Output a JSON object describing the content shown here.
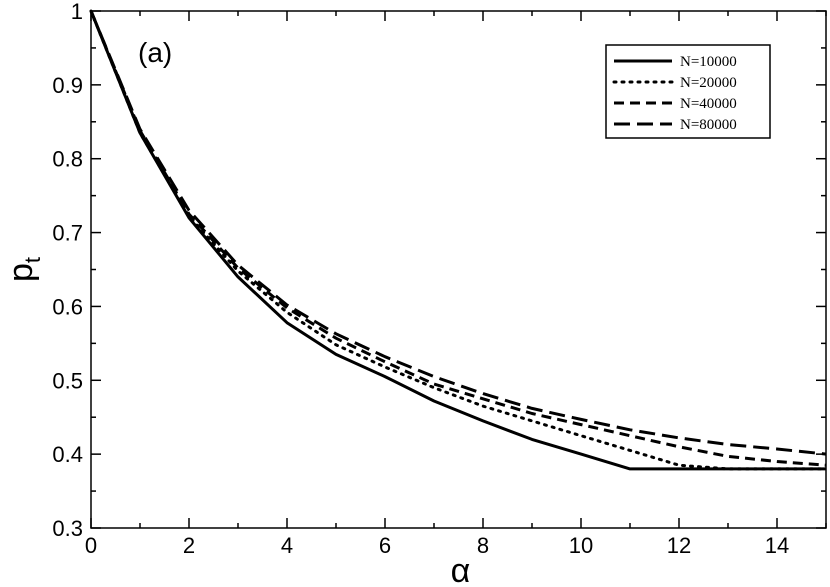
{
  "chart_data": {
    "type": "line",
    "title": "",
    "panel_label": "(a)",
    "xlabel": "α",
    "ylabel": "p",
    "ylabel_subscript": "t",
    "xlim": [
      0,
      15
    ],
    "ylim": [
      0.3,
      1.0
    ],
    "xticks": [
      0,
      2,
      4,
      6,
      8,
      10,
      12,
      14
    ],
    "yticks": [
      0.3,
      0.4,
      0.5,
      0.6,
      0.7,
      0.8,
      0.9,
      1
    ],
    "grid": false,
    "legend_position": "top-right",
    "series": [
      {
        "name": "N=10000",
        "style": "solid",
        "x": [
          0,
          1,
          2,
          3,
          4,
          5,
          6,
          7,
          8,
          9,
          10,
          11,
          12,
          13,
          14,
          15
        ],
        "y": [
          1.0,
          0.835,
          0.72,
          0.64,
          0.578,
          0.535,
          0.505,
          0.472,
          0.445,
          0.42,
          0.4,
          0.38,
          0.38,
          0.38,
          0.38,
          0.38
        ]
      },
      {
        "name": "N=20000",
        "style": "dotted",
        "x": [
          0,
          1,
          2,
          3,
          4,
          5,
          6,
          7,
          8,
          9,
          10,
          11,
          12,
          13,
          14,
          15
        ],
        "y": [
          1.0,
          0.835,
          0.722,
          0.648,
          0.592,
          0.548,
          0.518,
          0.49,
          0.465,
          0.445,
          0.425,
          0.405,
          0.385,
          0.38,
          0.38,
          0.38
        ]
      },
      {
        "name": "N=40000",
        "style": "dashed",
        "x": [
          0,
          1,
          2,
          3,
          4,
          5,
          6,
          7,
          8,
          9,
          10,
          11,
          12,
          13,
          14,
          15
        ],
        "y": [
          1.0,
          0.838,
          0.725,
          0.652,
          0.598,
          0.557,
          0.525,
          0.495,
          0.475,
          0.455,
          0.44,
          0.425,
          0.41,
          0.397,
          0.39,
          0.385
        ]
      },
      {
        "name": "N=80000",
        "style": "long-dashed",
        "x": [
          0,
          1,
          2,
          3,
          4,
          5,
          6,
          7,
          8,
          9,
          10,
          11,
          12,
          13,
          14,
          15
        ],
        "y": [
          1.0,
          0.84,
          0.73,
          0.656,
          0.602,
          0.563,
          0.532,
          0.505,
          0.482,
          0.462,
          0.447,
          0.433,
          0.422,
          0.413,
          0.407,
          0.4
        ]
      }
    ]
  }
}
